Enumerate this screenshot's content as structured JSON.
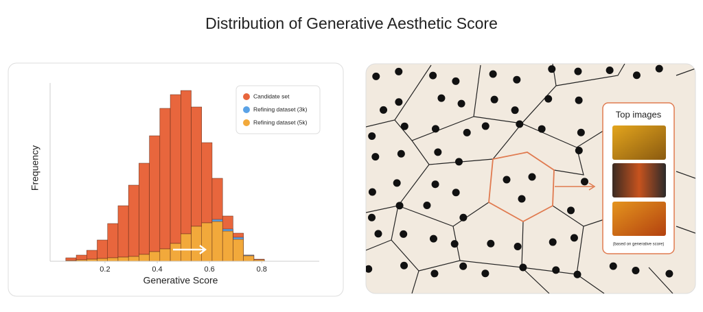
{
  "title": "Distribution of Generative Aesthetic Score",
  "chart_data": {
    "type": "histogram",
    "x_label": "Generative Score",
    "y_label": "Frequency",
    "bins": [
      0.05,
      0.09,
      0.13,
      0.17,
      0.21,
      0.25,
      0.29,
      0.33,
      0.37,
      0.41,
      0.45,
      0.49,
      0.53,
      0.57,
      0.61,
      0.65,
      0.69,
      0.73,
      0.77,
      0.81
    ],
    "series": [
      {
        "name": "Candidate set",
        "color": "#e8663d",
        "values": [
          5,
          9,
          16,
          31,
          55,
          81,
          111,
          143,
          183,
          223,
          243,
          249,
          225,
          173,
          121,
          66,
          41,
          9,
          3
        ]
      },
      {
        "name": "Refining dataset (3k)",
        "color": "#5aa2e6",
        "values": [
          1,
          2,
          3,
          4,
          5,
          6,
          7,
          10,
          14,
          18,
          26,
          40,
          51,
          56,
          61,
          47,
          35,
          9,
          2
        ]
      },
      {
        "name": "Refining dataset (5k)",
        "color": "#f2a93b",
        "values": [
          1,
          2,
          3,
          4,
          5,
          6,
          7,
          10,
          14,
          18,
          26,
          40,
          51,
          56,
          58,
          44,
          32,
          8,
          2
        ]
      }
    ],
    "xlim": [
      -0.01,
      1.02
    ],
    "xticks": [
      0.2,
      0.4,
      0.6,
      0.8
    ],
    "ylim": [
      0,
      260
    ]
  },
  "diagram": {
    "title": "Top images",
    "caption": "(based on generative score)"
  }
}
